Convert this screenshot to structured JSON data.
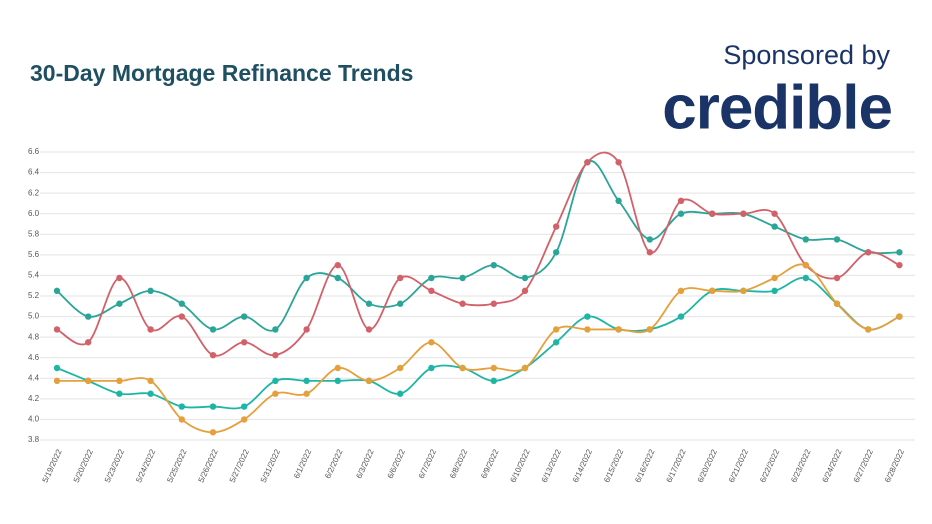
{
  "chart_data": {
    "type": "line",
    "title": "30-Day Mortgage Refinance Trends",
    "sponsor_text": "Sponsored by",
    "sponsor": "credible",
    "categories": [
      "5/19/2022",
      "5/20/2022",
      "5/23/2022",
      "5/24/2022",
      "5/25/2022",
      "5/26/2022",
      "5/27/2022",
      "5/31/2022",
      "6/1/2022",
      "6/2/2022",
      "6/3/2022",
      "6/6/2022",
      "6/7/2022",
      "6/8/2022",
      "6/9/2022",
      "6/10/2022",
      "6/13/2022",
      "6/14/2022",
      "6/15/2022",
      "6/16/2022",
      "6/17/2022",
      "6/20/2022",
      "6/21/2022",
      "6/22/2022",
      "6/23/2022",
      "6/24/2022",
      "6/27/2022",
      "6/28/2022"
    ],
    "series": [
      {
        "color": "#2ba597",
        "values": [
          5.25,
          5.0,
          5.125,
          5.25,
          5.125,
          4.875,
          5.0,
          4.875,
          5.375,
          5.375,
          5.125,
          5.125,
          5.375,
          5.375,
          5.5,
          5.375,
          5.625,
          6.5,
          6.125,
          5.75,
          6.0,
          6.0,
          6.0,
          5.875,
          5.75,
          5.75,
          5.625,
          5.625
        ]
      },
      {
        "color": "#d2616a",
        "values": [
          4.875,
          4.75,
          5.375,
          4.875,
          5.0,
          4.625,
          4.75,
          4.625,
          4.875,
          5.5,
          4.875,
          5.375,
          5.25,
          5.125,
          5.125,
          5.25,
          5.875,
          6.5,
          6.5,
          5.625,
          6.125,
          6.0,
          6.0,
          6.0,
          5.5,
          5.375,
          5.625,
          5.5
        ]
      },
      {
        "color": "#1fb5a5",
        "values": [
          4.5,
          4.375,
          4.25,
          4.25,
          4.125,
          4.125,
          4.125,
          4.375,
          4.375,
          4.375,
          4.375,
          4.25,
          4.5,
          4.5,
          4.375,
          4.5,
          4.75,
          5.0,
          4.875,
          4.875,
          5.0,
          5.25,
          5.25,
          5.25,
          5.375,
          5.125,
          4.875,
          5.0
        ]
      },
      {
        "color": "#e5a03c",
        "values": [
          4.375,
          4.375,
          4.375,
          4.375,
          4.0,
          3.875,
          4.0,
          4.25,
          4.25,
          4.5,
          4.375,
          4.5,
          4.75,
          4.5,
          4.5,
          4.5,
          4.875,
          4.875,
          4.875,
          4.875,
          5.25,
          5.25,
          5.25,
          5.375,
          5.5,
          5.125,
          4.875,
          5.0
        ]
      }
    ],
    "ylim": [
      3.8,
      6.6
    ],
    "yticks": [
      3.8,
      {
        "value": 4,
        "label": "4.0"
      },
      4.2,
      4.4,
      4.6,
      4.8,
      {
        "value": 5,
        "label": "5.0"
      },
      5.2,
      5.4,
      5.6,
      5.8,
      {
        "value": 6,
        "label": "6.0"
      },
      6.2,
      6.4,
      6.6
    ],
    "grid": true
  }
}
